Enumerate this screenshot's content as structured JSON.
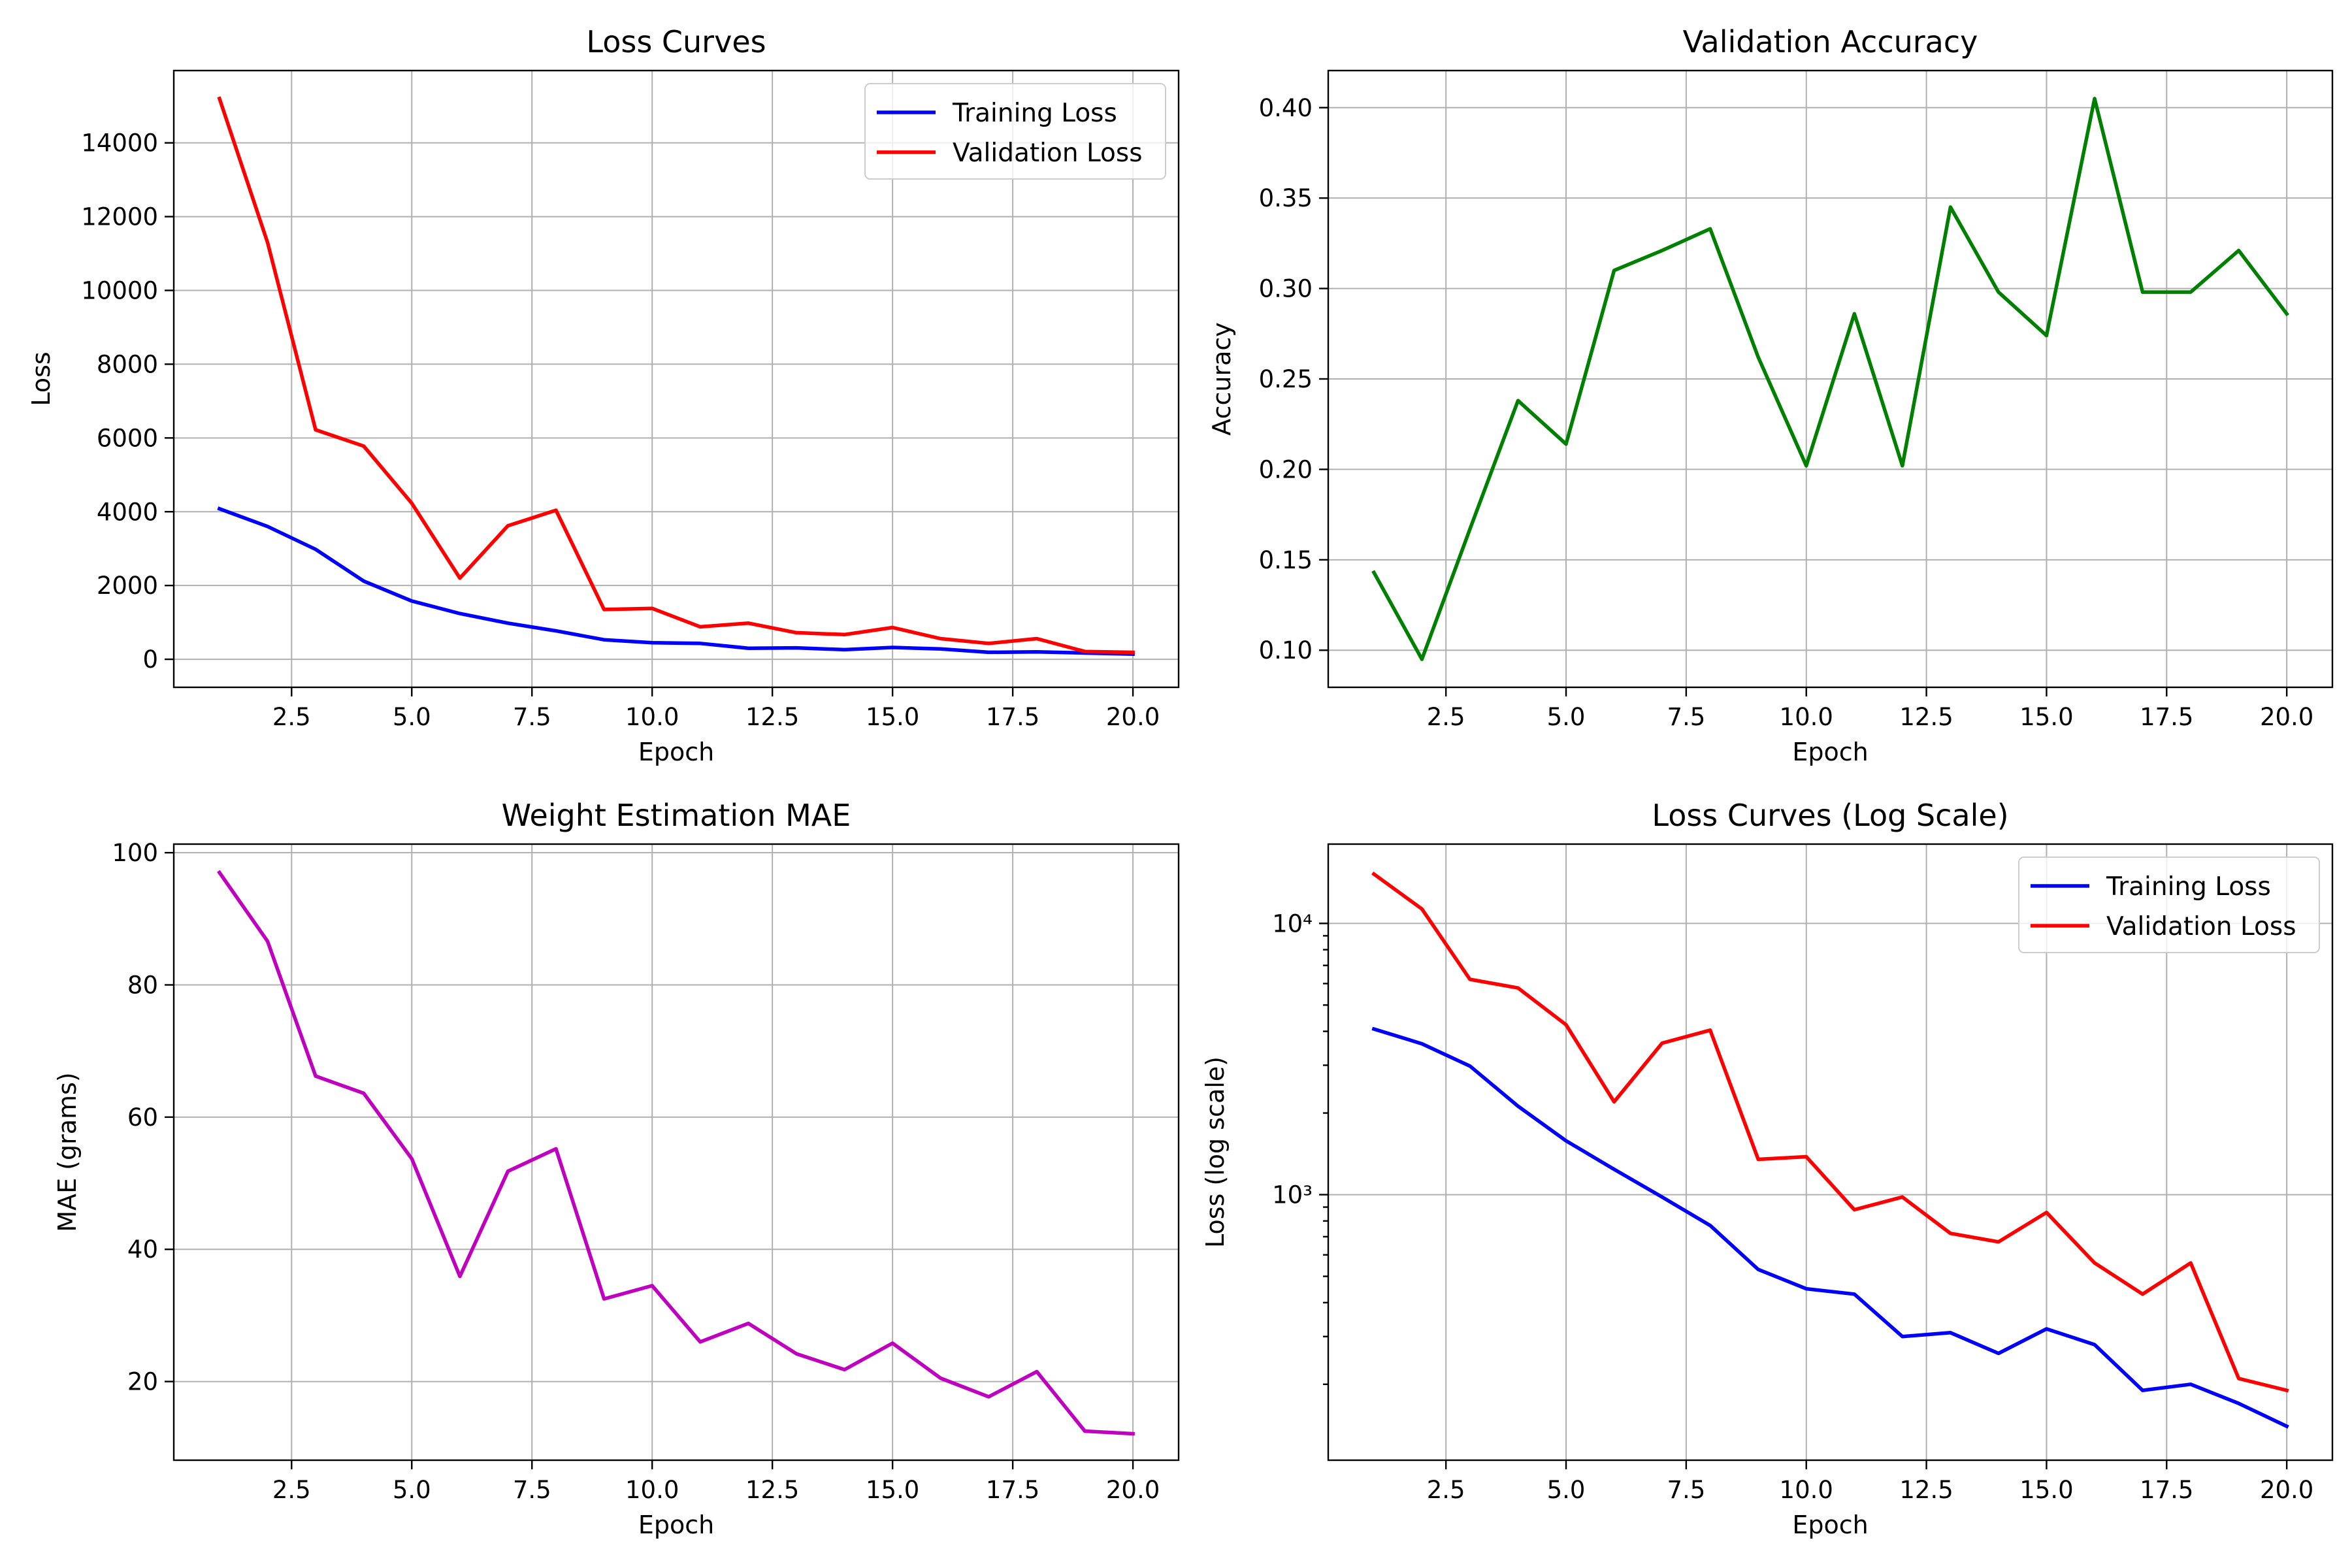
{
  "chart_data": [
    {
      "id": "loss",
      "type": "line",
      "title": "Loss Curves",
      "xlabel": "Epoch",
      "ylabel": "Loss",
      "xlim": [
        0.05,
        20.95
      ],
      "ylim": [
        -760,
        15960
      ],
      "xticks": [
        2.5,
        5.0,
        7.5,
        10.0,
        12.5,
        15.0,
        17.5,
        20.0
      ],
      "xticklabels": [
        "2.5",
        "5.0",
        "7.5",
        "10.0",
        "12.5",
        "15.0",
        "17.5",
        "20.0"
      ],
      "yticks": [
        0,
        2000,
        4000,
        6000,
        8000,
        10000,
        12000,
        14000
      ],
      "yticklabels": [
        "0",
        "2000",
        "4000",
        "6000",
        "8000",
        "10000",
        "12000",
        "14000"
      ],
      "grid": true,
      "legend": "top-right",
      "x": [
        1,
        2,
        3,
        4,
        5,
        6,
        7,
        8,
        9,
        10,
        11,
        12,
        13,
        14,
        15,
        16,
        17,
        18,
        19,
        20
      ],
      "series": [
        {
          "name": "Training Loss",
          "color": "#0000ff",
          "values": [
            4080,
            3600,
            2980,
            2120,
            1580,
            1240,
            980,
            770,
            530,
            450,
            430,
            300,
            310,
            260,
            320,
            280,
            190,
            200,
            170,
            140
          ]
        },
        {
          "name": "Validation Loss",
          "color": "#ff0000",
          "values": [
            15200,
            11300,
            6220,
            5780,
            4230,
            2200,
            3620,
            4040,
            1350,
            1380,
            880,
            980,
            720,
            670,
            860,
            560,
            430,
            560,
            210,
            190
          ]
        }
      ]
    },
    {
      "id": "acc",
      "type": "line",
      "title": "Validation Accuracy",
      "xlabel": "Epoch",
      "ylabel": "Accuracy",
      "xlim": [
        0.05,
        20.95
      ],
      "ylim": [
        0.0795,
        0.4205
      ],
      "xticks": [
        2.5,
        5.0,
        7.5,
        10.0,
        12.5,
        15.0,
        17.5,
        20.0
      ],
      "xticklabels": [
        "2.5",
        "5.0",
        "7.5",
        "10.0",
        "12.5",
        "15.0",
        "17.5",
        "20.0"
      ],
      "yticks": [
        0.1,
        0.15,
        0.2,
        0.25,
        0.3,
        0.35,
        0.4
      ],
      "yticklabels": [
        "0.10",
        "0.15",
        "0.20",
        "0.25",
        "0.30",
        "0.35",
        "0.40"
      ],
      "grid": true,
      "x": [
        1,
        2,
        3,
        4,
        5,
        6,
        7,
        8,
        9,
        10,
        11,
        12,
        13,
        14,
        15,
        16,
        17,
        18,
        19,
        20
      ],
      "series": [
        {
          "color": "#008000",
          "values": [
            0.143,
            0.095,
            0.167,
            0.238,
            0.214,
            0.31,
            0.321,
            0.333,
            0.262,
            0.202,
            0.286,
            0.202,
            0.345,
            0.298,
            0.274,
            0.405,
            0.298,
            0.298,
            0.321,
            0.286
          ]
        }
      ]
    },
    {
      "id": "mae",
      "type": "line",
      "title": "Weight Estimation MAE",
      "xlabel": "Epoch",
      "ylabel": "MAE (grams)",
      "xlim": [
        0.05,
        20.95
      ],
      "ylim": [
        8.1,
        101.3
      ],
      "xticks": [
        2.5,
        5.0,
        7.5,
        10.0,
        12.5,
        15.0,
        17.5,
        20.0
      ],
      "xticklabels": [
        "2.5",
        "5.0",
        "7.5",
        "10.0",
        "12.5",
        "15.0",
        "17.5",
        "20.0"
      ],
      "yticks": [
        20,
        40,
        60,
        80,
        100
      ],
      "yticklabels": [
        "20",
        "40",
        "60",
        "80",
        "100"
      ],
      "grid": true,
      "x": [
        1,
        2,
        3,
        4,
        5,
        6,
        7,
        8,
        9,
        10,
        11,
        12,
        13,
        14,
        15,
        16,
        17,
        18,
        19,
        20
      ],
      "series": [
        {
          "color": "#bf00bf",
          "values": [
            97.0,
            86.6,
            66.2,
            63.6,
            53.7,
            35.9,
            51.8,
            55.2,
            32.5,
            34.5,
            26.0,
            28.8,
            24.2,
            21.8,
            25.8,
            20.5,
            17.7,
            21.5,
            12.5,
            12.1
          ]
        }
      ]
    },
    {
      "id": "logloss",
      "type": "line",
      "title": "Loss Curves (Log Scale)",
      "xlabel": "Epoch",
      "ylabel": "Loss (log scale)",
      "yscale": "log",
      "xlim": [
        0.05,
        20.95
      ],
      "ylim": [
        105,
        19600
      ],
      "xticks": [
        2.5,
        5.0,
        7.5,
        10.0,
        12.5,
        15.0,
        17.5,
        20.0
      ],
      "xticklabels": [
        "2.5",
        "5.0",
        "7.5",
        "10.0",
        "12.5",
        "15.0",
        "17.5",
        "20.0"
      ],
      "yticks": [
        1000,
        10000
      ],
      "yticklabels": [
        "10³",
        "10⁴"
      ],
      "grid": true,
      "legend": "top-right",
      "x": [
        1,
        2,
        3,
        4,
        5,
        6,
        7,
        8,
        9,
        10,
        11,
        12,
        13,
        14,
        15,
        16,
        17,
        18,
        19,
        20
      ],
      "series": [
        {
          "name": "Training Loss",
          "color": "#0000ff",
          "values": [
            4080,
            3600,
            2980,
            2120,
            1580,
            1240,
            980,
            770,
            530,
            450,
            430,
            300,
            310,
            260,
            320,
            280,
            190,
            200,
            170,
            140
          ]
        },
        {
          "name": "Validation Loss",
          "color": "#ff0000",
          "values": [
            15200,
            11300,
            6220,
            5780,
            4230,
            2200,
            3620,
            4040,
            1350,
            1380,
            880,
            980,
            720,
            670,
            860,
            560,
            430,
            560,
            210,
            190
          ]
        }
      ]
    }
  ]
}
